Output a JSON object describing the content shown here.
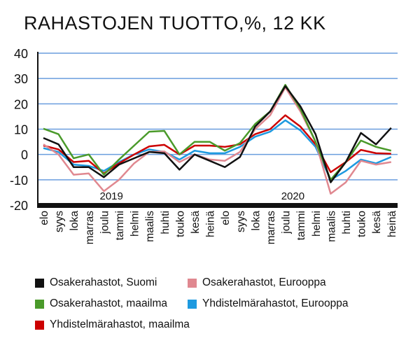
{
  "chart_data": {
    "type": "line",
    "title": "RAHASTOJEN TUOTTO,%, 12 KK",
    "xlabel": "",
    "ylabel": "",
    "ylim": [
      -20,
      40
    ],
    "yticks": [
      -20,
      -10,
      0,
      10,
      20,
      30,
      40
    ],
    "grid": true,
    "legend": "bottom",
    "categories": [
      "elo",
      "syys",
      "loka",
      "marras",
      "joulu",
      "tammi",
      "helmi",
      "maalis",
      "huhti",
      "touko",
      "kesä",
      "heinä",
      "elo",
      "syys",
      "loka",
      "marras",
      "joulu",
      "tammi",
      "helmi",
      "maalis",
      "huhti",
      "touko",
      "kesä",
      "heinä"
    ],
    "year_labels": [
      {
        "label": "2019",
        "at": "joulu-tammi 2019"
      },
      {
        "label": "2020",
        "at": "joulu-tammi 2020"
      }
    ],
    "series": [
      {
        "name": "Osakerahastot, Suomi",
        "color": "#111111",
        "values": [
          6.5,
          4,
          -5,
          -5,
          -9,
          -4,
          -1.5,
          1,
          0.5,
          -6,
          0,
          -2.5,
          -5,
          -1,
          11,
          17,
          27,
          19,
          8,
          -11,
          -3,
          8.5,
          4,
          10.5
        ]
      },
      {
        "name": "Osakerahastot, Eurooppa",
        "color": "#e08890",
        "values": [
          4,
          0,
          -8,
          -7.5,
          -14.5,
          -10,
          -3.5,
          1,
          1.2,
          -3,
          0,
          -2,
          -2.5,
          1,
          10,
          15.5,
          26.5,
          17,
          5,
          -15.5,
          -11,
          -2.5,
          -4,
          -3
        ]
      },
      {
        "name": "Osakerahastot, maailma",
        "color": "#4a9a2a",
        "values": [
          10.2,
          8,
          -1.5,
          0,
          -8,
          -2,
          3.5,
          9,
          9.3,
          0,
          5,
          5,
          1.5,
          4.5,
          12,
          17,
          27.5,
          18,
          5,
          -10,
          -3,
          5.5,
          3,
          1.5
        ]
      },
      {
        "name": "Yhdistelmärahastot, Eurooppa",
        "color": "#1e9ae0",
        "values": [
          2.5,
          1,
          -4,
          -4.5,
          -6.5,
          -3,
          0,
          2,
          1,
          -2,
          1.5,
          0.5,
          0.5,
          3,
          7,
          9,
          13.5,
          9.5,
          3,
          -10,
          -6.5,
          -2,
          -3.5,
          -1
        ]
      },
      {
        "name": "Yhdistelmärahastot, maailma",
        "color": "#cc0000",
        "values": [
          3.5,
          2,
          -3,
          -2.5,
          -7.5,
          -3.5,
          0,
          3.2,
          3.8,
          0,
          3.5,
          3.5,
          3,
          4,
          8,
          10,
          15.5,
          11,
          4,
          -7,
          -3,
          1.8,
          0.5,
          0.3
        ]
      }
    ]
  }
}
